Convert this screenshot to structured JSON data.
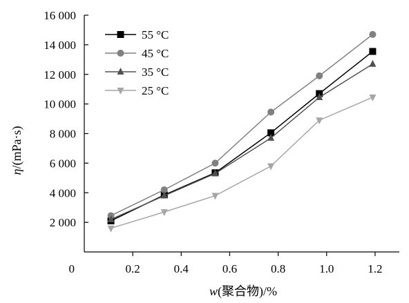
{
  "chart_data": {
    "type": "line",
    "title": "",
    "xlabel_parts": [
      "w",
      "(聚合物)/%"
    ],
    "ylabel_parts": [
      "η",
      "/(mPa·s)"
    ],
    "xlim": [
      0,
      1.3
    ],
    "ylim": [
      0,
      16000
    ],
    "x_ticks": [
      0.2,
      0.4,
      0.6,
      0.8,
      1.0,
      1.2
    ],
    "x_tick_labels": [
      "0.2",
      "0.4",
      "0.6",
      "0.8",
      "1.0",
      "1.2"
    ],
    "y_ticks": [
      0,
      2000,
      4000,
      6000,
      8000,
      10000,
      12000,
      14000,
      16000
    ],
    "y_tick_labels": [
      "0",
      "2 000",
      "4 000",
      "6 000",
      "8 000",
      "10 000",
      "12 000",
      "14 000",
      "16 000"
    ],
    "grid": false,
    "legend_position": "top-left",
    "x": [
      0.11,
      0.33,
      0.54,
      0.77,
      0.97,
      1.19
    ],
    "series": [
      {
        "name": "55 °C",
        "marker": "square",
        "color": "#000000",
        "values": [
          2100,
          3850,
          5350,
          8050,
          10700,
          13550
        ]
      },
      {
        "name": "45 °C",
        "marker": "circle",
        "color": "#808080",
        "values": [
          2450,
          4200,
          6000,
          9450,
          11900,
          14700
        ]
      },
      {
        "name": "35 °C",
        "marker": "triangle-up",
        "color": "#505050",
        "values": [
          2200,
          3800,
          5300,
          7700,
          10450,
          12700
        ]
      },
      {
        "name": "25 °C",
        "marker": "triangle-down",
        "color": "#a6a6a6",
        "values": [
          1600,
          2700,
          3800,
          5800,
          8900,
          10450
        ]
      }
    ]
  }
}
